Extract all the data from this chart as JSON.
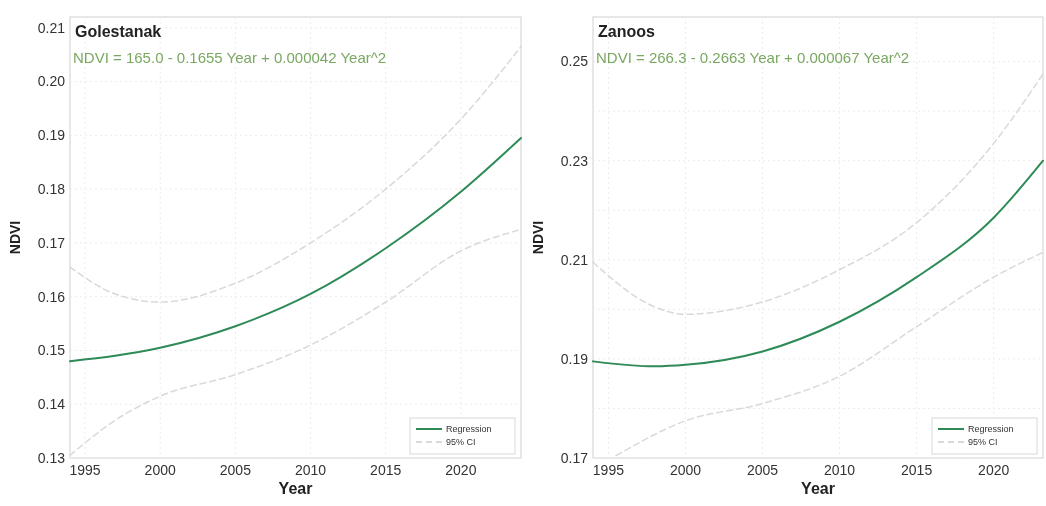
{
  "chart_data": [
    {
      "type": "line",
      "title": "Golestanak",
      "xlabel": "Year",
      "ylabel": "NDVI",
      "annotations": [
        "NDVI = 165.0 - 0.1655 Year + 0.000042 Year^2"
      ],
      "xlim": [
        1994,
        2024
      ],
      "xticks": [
        1995,
        2000,
        2005,
        2010,
        2015,
        2020
      ],
      "ylim": [
        0.13,
        0.212
      ],
      "yticks": [
        0.13,
        0.14,
        0.15,
        0.16,
        0.17,
        0.18,
        0.19,
        {
          "value": 0.2,
          "label": "0.20"
        },
        0.21
      ],
      "grid": true,
      "legend": "bottom right",
      "series": [
        {
          "name": "Regression",
          "color": "#2e8b57",
          "line_style": "solid",
          "x": [
            1994,
            1997,
            2000,
            2005,
            2010,
            2015,
            2020,
            2024
          ],
          "values": [
            0.148,
            0.149,
            0.1505,
            0.1545,
            0.1605,
            0.169,
            0.1795,
            0.1895
          ]
        },
        {
          "name": "95% CI",
          "color": "#d9d9d9",
          "line_style": "dashed",
          "x": [
            1994,
            1997,
            2000,
            2005,
            2010,
            2015,
            2020,
            2024
          ],
          "values": [
            0.1655,
            0.1605,
            0.159,
            0.1625,
            0.17,
            0.18,
            0.193,
            0.2065
          ]
        },
        {
          "color": "#d9d9d9",
          "line_style": "dashed",
          "x": [
            1994,
            1997,
            2000,
            2005,
            2010,
            2015,
            2020,
            2024
          ],
          "values": [
            0.1305,
            0.137,
            0.1415,
            0.1455,
            0.151,
            0.159,
            0.1685,
            0.1725
          ]
        }
      ]
    },
    {
      "type": "line",
      "title": "Zanoos",
      "xlabel": "Year",
      "ylabel": "NDVI",
      "annotations": [
        "NDVI = 266.3 - 0.2663 Year + 0.000067 Year^2"
      ],
      "xlim": [
        1994,
        2023.2
      ],
      "xticks": [
        1995,
        2000,
        2005,
        2010,
        2015,
        2020
      ],
      "ylim": [
        0.17,
        0.259
      ],
      "yticks": [
        0.17,
        {
          "value": 0.18,
          "label": null
        },
        0.19,
        {
          "value": 0.2,
          "label": null
        },
        0.21,
        {
          "value": 0.22,
          "label": null
        },
        0.23,
        {
          "value": 0.24,
          "label": null
        },
        0.25
      ],
      "grid": true,
      "legend": "bottom right",
      "series": [
        {
          "name": "Regression",
          "color": "#2e8b57",
          "line_style": "solid",
          "x": [
            1994,
            1998,
            2000,
            2005,
            2010,
            2015,
            2020,
            2023.2
          ],
          "values": [
            0.1895,
            0.1885,
            0.1888,
            0.1915,
            0.1975,
            0.2065,
            0.2185,
            0.23
          ]
        },
        {
          "name": "95% CI",
          "color": "#d9d9d9",
          "line_style": "dashed",
          "x": [
            1994,
            1998,
            2000,
            2005,
            2010,
            2015,
            2020,
            2023.2
          ],
          "values": [
            0.2095,
            0.2005,
            0.199,
            0.2015,
            0.208,
            0.2175,
            0.2335,
            0.2475
          ]
        },
        {
          "color": "#d9d9d9",
          "line_style": "dashed",
          "x": [
            1995.5,
            2000,
            2005,
            2010,
            2015,
            2020,
            2023.2
          ],
          "values": [
            0.1705,
            0.1775,
            0.181,
            0.1865,
            0.1965,
            0.2065,
            0.2115
          ]
        }
      ]
    }
  ]
}
